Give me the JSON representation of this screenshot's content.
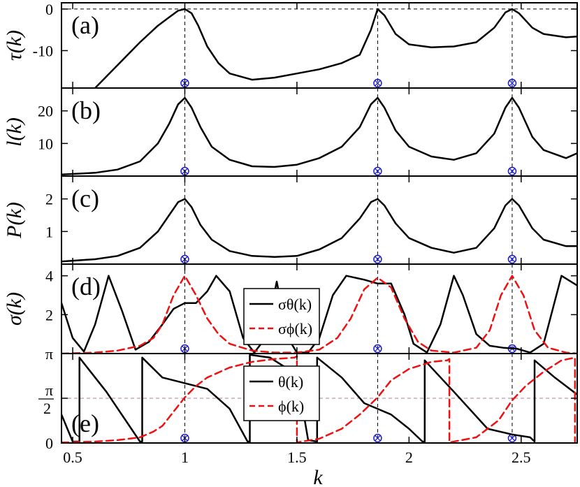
{
  "chart_data": {
    "type": "line",
    "xlabel": "k",
    "xlim": [
      0.45,
      2.75
    ],
    "xticks": [
      {
        "value": 0.5,
        "label": "0.5"
      },
      {
        "value": 1.0,
        "label": "1"
      },
      {
        "value": 1.5,
        "label": "1.5"
      },
      {
        "value": 2.0,
        "label": "2"
      },
      {
        "value": 2.5,
        "label": "2.5"
      }
    ],
    "resonance_markers_k": [
      1.0,
      1.86,
      2.46
    ],
    "panels": [
      {
        "id": "a",
        "label": "(a)",
        "ylabel": "τ(k)",
        "ylim": [
          -19,
          1.5
        ],
        "yticks": [
          {
            "value": 0,
            "label": "0"
          },
          {
            "value": -10,
            "label": "-10"
          }
        ],
        "hline": 0,
        "series": [
          {
            "name": "τ(k)",
            "color": "#000000",
            "dash": "",
            "x": [
              0.6,
              0.7,
              0.8,
              0.88,
              0.93,
              0.97,
              1.0,
              1.03,
              1.06,
              1.1,
              1.15,
              1.2,
              1.3,
              1.4,
              1.5,
              1.6,
              1.7,
              1.78,
              1.83,
              1.86,
              1.89,
              1.94,
              2.0,
              2.1,
              2.2,
              2.3,
              2.38,
              2.43,
              2.46,
              2.49,
              2.55,
              2.6,
              2.7,
              2.75
            ],
            "y": [
              -19,
              -13.5,
              -8,
              -4,
              -2,
              -0.4,
              0,
              -1,
              -4,
              -9,
              -13,
              -15.5,
              -17,
              -16.5,
              -15.5,
              -14.5,
              -13,
              -11,
              -5,
              0,
              -1.5,
              -6,
              -8.5,
              -9.2,
              -9,
              -8,
              -4.5,
              -0.8,
              0,
              -1,
              -4.5,
              -6,
              -6.8,
              -6.6
            ]
          }
        ]
      },
      {
        "id": "b",
        "label": "(b)",
        "ylabel": "l(k)",
        "ylim": [
          0,
          27
        ],
        "yticks": [
          {
            "value": 10,
            "label": "10"
          },
          {
            "value": 20,
            "label": "20"
          }
        ],
        "series": [
          {
            "name": "l(k)",
            "color": "#000000",
            "dash": "",
            "x": [
              0.45,
              0.6,
              0.7,
              0.8,
              0.88,
              0.93,
              0.97,
              1.0,
              1.03,
              1.07,
              1.12,
              1.2,
              1.3,
              1.4,
              1.5,
              1.6,
              1.7,
              1.78,
              1.83,
              1.86,
              1.89,
              1.94,
              2.0,
              2.1,
              2.2,
              2.3,
              2.38,
              2.43,
              2.46,
              2.49,
              2.55,
              2.6,
              2.7,
              2.75
            ],
            "y": [
              0.5,
              1.0,
              2.0,
              4.5,
              10,
              16,
              22,
              24,
              21,
              15,
              9,
              5,
              3,
              2.8,
              3.5,
              5.5,
              9,
              15,
              22,
              24,
              21,
              14,
              9,
              6,
              5,
              7,
              13,
              21,
              24,
              21,
              12,
              8,
              5.5,
              7
            ]
          }
        ]
      },
      {
        "id": "c",
        "label": "(c)",
        "ylabel": "P(k)",
        "ylim": [
          0,
          2.7
        ],
        "yticks": [
          {
            "value": 1,
            "label": "1"
          },
          {
            "value": 2,
            "label": "2"
          }
        ],
        "series": [
          {
            "name": "P(k)",
            "color": "#000000",
            "dash": "",
            "x": [
              0.45,
              0.6,
              0.7,
              0.8,
              0.88,
              0.93,
              0.97,
              1.0,
              1.03,
              1.07,
              1.12,
              1.2,
              1.3,
              1.4,
              1.5,
              1.6,
              1.7,
              1.78,
              1.83,
              1.86,
              1.89,
              1.94,
              2.0,
              2.1,
              2.2,
              2.3,
              2.38,
              2.43,
              2.46,
              2.49,
              2.55,
              2.6,
              2.7,
              2.75
            ],
            "y": [
              0.08,
              0.15,
              0.25,
              0.5,
              1.0,
              1.5,
              1.9,
              2.0,
              1.75,
              1.2,
              0.75,
              0.4,
              0.25,
              0.22,
              0.25,
              0.45,
              0.8,
              1.4,
              1.9,
              2.0,
              1.8,
              1.25,
              0.8,
              0.5,
              0.35,
              0.5,
              1.1,
              1.8,
              2.0,
              1.8,
              1.1,
              0.75,
              0.55,
              0.55
            ]
          }
        ]
      },
      {
        "id": "d",
        "label": "(d)",
        "ylabel": "σ(k)",
        "ylim": [
          0,
          4.6
        ],
        "yticks": [
          {
            "value": 2,
            "label": "2"
          },
          {
            "value": 4,
            "label": "4"
          }
        ],
        "series": [
          {
            "name": "σθ(k)",
            "color": "#000000",
            "dash": "",
            "x": [
              0.45,
              0.5,
              0.55,
              0.6,
              0.66,
              0.72,
              0.78,
              0.84,
              0.9,
              0.95,
              1.0,
              1.05,
              1.1,
              1.14,
              1.2,
              1.26,
              1.31,
              1.36,
              1.41,
              1.46,
              1.5,
              1.55,
              1.6,
              1.66,
              1.72,
              1.8,
              1.86,
              1.92,
              1.98,
              2.02,
              2.08,
              2.14,
              2.2,
              2.24,
              2.3,
              2.36,
              2.42,
              2.48,
              2.54,
              2.6,
              2.68,
              2.75
            ],
            "y": [
              2.6,
              0.8,
              0.1,
              1.5,
              4.0,
              2.2,
              0.2,
              0.6,
              1.5,
              2.3,
              2.6,
              2.6,
              3.2,
              4.0,
              3.2,
              0.8,
              0.05,
              0.8,
              3.7,
              0.8,
              0.05,
              0.05,
              0.8,
              3.0,
              4.0,
              3.8,
              3.6,
              3.6,
              2.0,
              0.5,
              0.05,
              1.5,
              4.0,
              3.0,
              1.0,
              0.4,
              0.3,
              0.25,
              0.05,
              0.5,
              4.0,
              3.5
            ]
          },
          {
            "name": "σϕ(k)",
            "color": "#ee1111",
            "dash": "10,6",
            "x": [
              0.45,
              0.6,
              0.7,
              0.8,
              0.86,
              0.9,
              0.95,
              1.0,
              1.05,
              1.1,
              1.15,
              1.2,
              1.3,
              1.4,
              1.5,
              1.6,
              1.68,
              1.74,
              1.8,
              1.86,
              1.92,
              1.98,
              2.04,
              2.1,
              2.2,
              2.3,
              2.36,
              2.41,
              2.46,
              2.51,
              2.56,
              2.62,
              2.7,
              2.75
            ],
            "y": [
              0,
              0.05,
              0.15,
              0.4,
              0.8,
              1.5,
              3.0,
              4.0,
              3.0,
              1.8,
              1.0,
              0.5,
              0.15,
              0.05,
              0.05,
              0.2,
              0.8,
              1.8,
              3.3,
              3.9,
              3.4,
              1.8,
              0.6,
              0.15,
              0.05,
              0.3,
              1.2,
              3.0,
              4.0,
              3.0,
              1.2,
              0.3,
              0.05,
              0
            ]
          }
        ]
      },
      {
        "id": "e",
        "label": "(e)",
        "ylabel": "",
        "ylim": [
          0,
          3.1416
        ],
        "yticks": [
          {
            "value": 0,
            "label": "0"
          },
          {
            "value": 1.5708,
            "label": "π/2"
          },
          {
            "value": 3.1416,
            "label": "π"
          }
        ],
        "hlines": [
          1.5708,
          3.1416
        ],
        "series": [
          {
            "name": "θ(k)",
            "color": "#000000",
            "dash": "",
            "x": [
              0.45,
              0.5,
              0.53,
              0.53,
              0.65,
              0.8,
              0.81,
              0.81,
              0.9,
              1.0,
              1.1,
              1.2,
              1.28,
              1.29,
              1.29,
              1.38,
              1.5,
              1.55,
              1.59,
              1.59,
              1.7,
              1.8,
              1.86,
              1.92,
              2.0,
              2.06,
              2.07,
              2.07,
              2.2,
              2.35,
              2.46,
              2.54,
              2.56,
              2.56,
              2.65,
              2.75
            ],
            "y": [
              1.0,
              0.05,
              0.05,
              3.0,
              1.8,
              0.05,
              0.05,
              3.0,
              2.3,
              2.1,
              1.9,
              1.2,
              0.05,
              0.05,
              3.1,
              3.0,
              2.4,
              0.1,
              0.05,
              3.0,
              2.3,
              1.4,
              1.2,
              1.0,
              0.5,
              0.05,
              0.05,
              2.9,
              1.8,
              0.5,
              0.3,
              0.2,
              0.05,
              2.9,
              2.3,
              1.7
            ]
          },
          {
            "name": "ϕ(k)",
            "color": "#ee1111",
            "dash": "10,6",
            "x": [
              0.45,
              0.6,
              0.7,
              0.8,
              0.86,
              0.9,
              0.95,
              1.0,
              1.05,
              1.1,
              1.2,
              1.3,
              1.4,
              1.49,
              1.5,
              1.5,
              1.6,
              1.7,
              1.78,
              1.86,
              1.92,
              2.0,
              2.1,
              2.17,
              2.18,
              2.18,
              2.3,
              2.4,
              2.46,
              2.52,
              2.6,
              2.68,
              2.74,
              2.74
            ],
            "y": [
              0.02,
              0.05,
              0.1,
              0.2,
              0.4,
              0.6,
              1.1,
              1.6,
              2.0,
              2.3,
              2.65,
              2.85,
              2.95,
              3.0,
              3.05,
              0.02,
              0.15,
              0.5,
              1.0,
              1.6,
              2.2,
              2.6,
              2.85,
              2.9,
              2.95,
              0.02,
              0.2,
              0.8,
              1.5,
              2.0,
              2.5,
              2.9,
              3.0,
              0.02
            ]
          }
        ],
        "legend": [
          "θ(k)",
          "ϕ(k)"
        ]
      }
    ],
    "legend_d": [
      "σθ(k)",
      "σϕ(k)"
    ]
  }
}
